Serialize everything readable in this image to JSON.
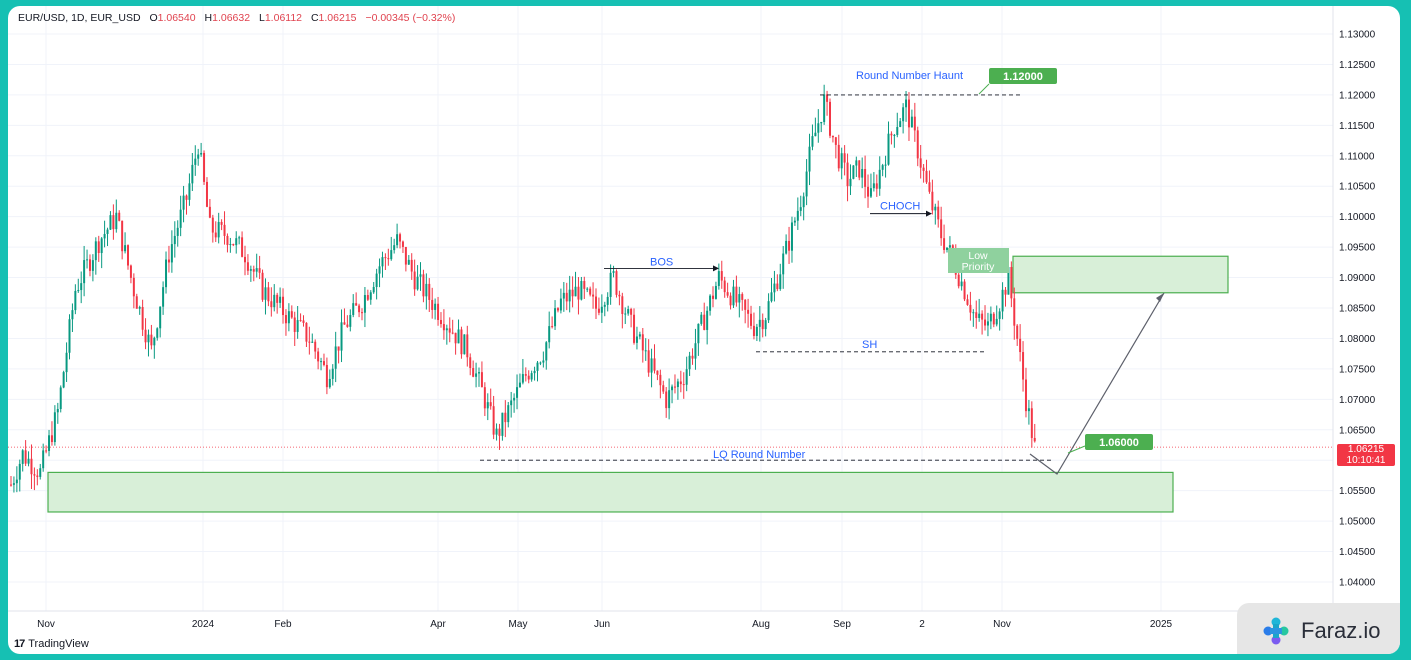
{
  "header": {
    "symbol": "EUR/USD, 1D, EUR_USD",
    "o_label": "O",
    "o_value": "1.06540",
    "h_label": "H",
    "h_value": "1.06632",
    "l_label": "L",
    "l_value": "1.06112",
    "c_label": "C",
    "c_value": "1.06215",
    "change": "−0.00345 (−0.32%)"
  },
  "price_tag": {
    "price": "1.06215",
    "countdown": "10:10:41"
  },
  "footer": {
    "tradingview": "TradingView"
  },
  "brand": {
    "name": "Faraz.io"
  },
  "colors": {
    "up": "#089981",
    "down": "#f23645",
    "zone_fill": "#d8efd8",
    "zone_border": "#4caf50",
    "label_green": "#4caf50",
    "annotation_blue": "#2962ff"
  },
  "chart_data": {
    "type": "candlestick",
    "instrument": "EUR/USD",
    "timeframe": "1D",
    "ylim": [
      1.04,
      1.13
    ],
    "y_ticks": [
      "1.13000",
      "1.12500",
      "1.12000",
      "1.11500",
      "1.11000",
      "1.10500",
      "1.10000",
      "1.09500",
      "1.09000",
      "1.08500",
      "1.08000",
      "1.07500",
      "1.07000",
      "1.06500",
      "1.06000",
      "1.05500",
      "1.05000",
      "1.04500",
      "1.04000"
    ],
    "x_ticks": [
      "Nov",
      "2024",
      "Feb",
      "Apr",
      "May",
      "Jun",
      "Aug",
      "Sep",
      "2",
      "Nov",
      "2025"
    ],
    "close_path": [
      [
        0,
        1.056
      ],
      [
        4,
        1.061
      ],
      [
        10,
        1.058
      ],
      [
        16,
        1.068
      ],
      [
        22,
        1.088
      ],
      [
        30,
        1.096
      ],
      [
        36,
        1.1
      ],
      [
        42,
        1.088
      ],
      [
        48,
        1.078
      ],
      [
        54,
        1.094
      ],
      [
        60,
        1.103
      ],
      [
        64,
        1.112
      ],
      [
        68,
        1.098
      ],
      [
        74,
        1.097
      ],
      [
        80,
        1.094
      ],
      [
        86,
        1.088
      ],
      [
        94,
        1.084
      ],
      [
        102,
        1.08
      ],
      [
        108,
        1.074
      ],
      [
        114,
        1.082
      ],
      [
        120,
        1.086
      ],
      [
        126,
        1.092
      ],
      [
        132,
        1.096
      ],
      [
        138,
        1.09
      ],
      [
        144,
        1.086
      ],
      [
        150,
        1.082
      ],
      [
        156,
        1.078
      ],
      [
        162,
        1.07
      ],
      [
        166,
        1.064
      ],
      [
        170,
        1.068
      ],
      [
        176,
        1.074
      ],
      [
        182,
        1.078
      ],
      [
        188,
        1.086
      ],
      [
        194,
        1.088
      ],
      [
        200,
        1.085
      ],
      [
        206,
        1.09
      ],
      [
        212,
        1.082
      ],
      [
        218,
        1.076
      ],
      [
        224,
        1.07
      ],
      [
        230,
        1.074
      ],
      [
        236,
        1.082
      ],
      [
        242,
        1.09
      ],
      [
        248,
        1.086
      ],
      [
        254,
        1.082
      ],
      [
        258,
        1.084
      ],
      [
        262,
        1.09
      ],
      [
        266,
        1.096
      ],
      [
        270,
        1.103
      ],
      [
        274,
        1.112
      ],
      [
        278,
        1.119
      ],
      [
        282,
        1.111
      ],
      [
        286,
        1.106
      ],
      [
        290,
        1.108
      ],
      [
        294,
        1.103
      ],
      [
        298,
        1.109
      ],
      [
        302,
        1.115
      ],
      [
        306,
        1.118
      ],
      [
        310,
        1.111
      ],
      [
        314,
        1.103
      ],
      [
        318,
        1.097
      ],
      [
        322,
        1.093
      ],
      [
        326,
        1.088
      ],
      [
        330,
        1.083
      ],
      [
        334,
        1.082
      ],
      [
        338,
        1.086
      ],
      [
        341,
        1.09
      ],
      [
        344,
        1.08
      ],
      [
        347,
        1.07
      ],
      [
        350,
        1.062
      ]
    ],
    "annotations": [
      {
        "kind": "level",
        "label": "Round Number Haunt",
        "tag": "1.12000",
        "price": 1.12
      },
      {
        "kind": "level",
        "label": "BOS",
        "price": 1.0915
      },
      {
        "kind": "level",
        "label": "CHOCH",
        "price": 1.1005
      },
      {
        "kind": "level",
        "label": "SH",
        "price": 1.0778
      },
      {
        "kind": "level",
        "label": "LQ Round Number",
        "tag": "1.06000",
        "price": 1.06
      },
      {
        "kind": "zone",
        "label": "Low Priority",
        "top": 1.0935,
        "bottom": 1.0875
      },
      {
        "kind": "zone",
        "label": "",
        "top": 1.058,
        "bottom": 1.0515
      }
    ]
  }
}
